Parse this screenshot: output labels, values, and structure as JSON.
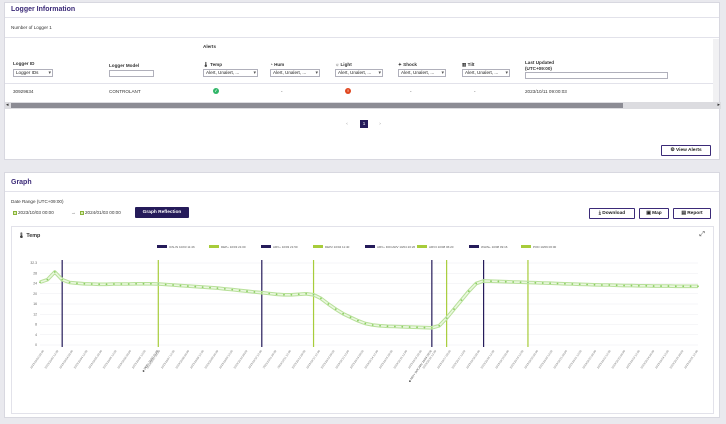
{
  "logger_info": {
    "title": "Logger Information",
    "count_label": "Number of Logger 1",
    "alerts_header": "Alerts",
    "columns": {
      "logger_id": "Logger ID",
      "logger_id_filter": "Logger IDs",
      "logger_model": "Logger Model",
      "temp": "Temp",
      "hum": "Hum",
      "light": "Light",
      "shock": "Shock",
      "tilt": "Tilt",
      "last_updated": "Last Updated",
      "last_updated_tz": "(UTC+09:00)"
    },
    "filter_value": "Alert, Unalert, ...",
    "row": {
      "logger_id": "30929634",
      "logger_model": "CONTROLANT",
      "temp_status": "ok",
      "hum": "-",
      "light_status": "alert",
      "shock": "-",
      "tilt": "-",
      "last_updated": "2023/10/11 09:00:03"
    },
    "pagination": {
      "prev": "‹",
      "current": "1",
      "next": "›"
    },
    "view_alerts": "View Alerts",
    "colors": {
      "ok": "#2fb567",
      "alert": "#e0461f",
      "accent": "#251b5a"
    }
  },
  "graph": {
    "title": "Graph",
    "date_range_label": "Date Range (UTC+09:00)",
    "start": "2023/10/03 00:00",
    "arrow": "→",
    "end": "2024/01/03 00:00",
    "reflect_button": "Graph Reflection",
    "download": "Download",
    "map": "Map",
    "report": "Report",
    "chart_title": "Temp",
    "expand": "⤢"
  },
  "chart_data": {
    "type": "line",
    "title": "Temp",
    "ylim": [
      0,
      32
    ],
    "y_ticks": [
      "32.3",
      "28",
      "24",
      "20",
      "16",
      "12",
      "8",
      "4",
      "0"
    ],
    "legend": [
      {
        "label": "ICN-IN 10/03 11:46",
        "color": "#251b5a"
      },
      {
        "label": "DEP+ 10/03 21:00",
        "color": "#a7cc3a"
      },
      {
        "label": "ARV+ 10/03 21:50",
        "color": "#251b5a"
      },
      {
        "label": "DEP2 10/04 11:40",
        "color": "#a7cc3a"
      },
      {
        "label": "ARV+ DOCARV 10/04 20:26",
        "color": "#251b5a"
      },
      {
        "label": "ARV3 10/08 06:20",
        "color": "#a7cc3a"
      },
      {
        "label": "WHIN+ 10/08 09:16",
        "color": "#251b5a"
      },
      {
        "label": "POD 10/09 06:00",
        "color": "#a7cc3a"
      }
    ],
    "event_lines": [
      {
        "x": 3,
        "color": "#251b5a"
      },
      {
        "x": 16,
        "color": "#a7cc3a"
      },
      {
        "x": 30,
        "color": "#251b5a"
      },
      {
        "x": 37,
        "color": "#a7cc3a"
      },
      {
        "x": 53,
        "color": "#251b5a"
      },
      {
        "x": 55,
        "color": "#a7cc3a"
      },
      {
        "x": 60,
        "color": "#251b5a"
      },
      {
        "x": 66,
        "color": "#a7cc3a"
      }
    ],
    "series": [
      {
        "values": [
          24.5,
          25.5,
          28.5,
          25.5,
          24.4,
          24.1,
          23.9,
          23.8,
          23.7,
          23.7,
          23.8,
          23.8,
          23.8,
          23.9,
          23.9,
          23.9,
          23.8,
          23.6,
          23.4,
          23.2,
          23.0,
          22.8,
          22.6,
          22.4,
          22.2,
          21.9,
          21.6,
          21.3,
          21.0,
          20.7,
          20.4,
          20.1,
          19.8,
          19.6,
          19.6,
          19.8,
          20.0,
          19.6,
          18.2,
          16.0,
          14.0,
          12.2,
          10.8,
          9.5,
          8.4,
          7.8,
          7.5,
          7.3,
          7.2,
          7.1,
          7.0,
          6.9,
          6.8,
          6.7,
          7.5,
          10.5,
          14.0,
          17.5,
          21.0,
          24.0,
          25.0,
          24.9,
          24.8,
          24.7,
          24.6,
          24.5,
          24.4,
          24.3,
          24.2,
          24.1,
          24.0,
          23.9,
          23.8,
          23.7,
          23.6,
          23.5,
          23.4,
          23.4,
          23.3,
          23.2,
          23.2,
          23.1,
          23.1,
          23.0,
          23.0,
          23.0,
          22.9,
          22.9,
          22.9,
          22.9
        ]
      }
    ],
    "x_tick_labels": [
      "2023/10/03 00:00",
      "2023/10/03 12:00",
      "2023/10/04 00:00",
      "2023/10/04 12:00",
      "2023/10/05 00:00",
      "2023/10/05 12:00",
      "2023/10/06 00:00",
      "2023/10/06 12:00",
      "2023/10/07 00:00",
      "2023/10/07 12:00",
      "2023/10/08 00:00",
      "2023/10/08 12:00",
      "2023/10/09 00:00",
      "2023/10/09 12:00",
      "2023/10/10 00:00",
      "2023/10/10 12:00",
      "2023/10/11 00:00",
      "2023/10/11 12:00",
      "2023/10/12 00:00",
      "2023/10/12 12:00",
      "2023/10/13 00:00",
      "2023/10/13 12:00",
      "2023/10/14 00:00",
      "2023/10/14 12:00",
      "2023/10/15 00:00",
      "2023/10/15 12:00",
      "2023/10/16 00:00",
      "2023/10/16 12:00",
      "2023/10/17 00:00",
      "2023/10/17 12:00",
      "2023/10/18 00:00",
      "2023/10/18 12:00",
      "2023/10/19 00:00",
      "2023/10/19 12:00",
      "2023/10/20 00:00",
      "2023/10/20 12:00",
      "2023/10/21 00:00",
      "2023/10/21 12:00",
      "2023/10/22 00:00",
      "2023/10/22 12:00",
      "2023/10/23 00:00",
      "2023/10/23 12:00",
      "2023/10/24 00:00",
      "2023/10/24 12:00",
      "2023/10/25 00:00",
      "2023/10/25 12:00"
    ],
    "marker_labels": [
      {
        "x": 16,
        "label": "DEP+ 10/03 21:00"
      },
      {
        "x": 53,
        "label": "ARV+ DOCARV 10/04 20:26"
      }
    ],
    "grid": true
  }
}
